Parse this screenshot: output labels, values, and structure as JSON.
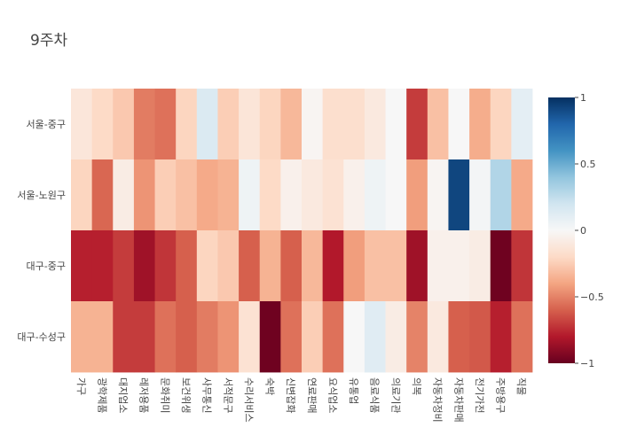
{
  "chart_data": {
    "type": "heatmap",
    "title": "9주차",
    "x": [
      "가구",
      "광학제품",
      "대지업소",
      "레저용품",
      "문화취미",
      "보건위생",
      "사무통신",
      "서적문구",
      "수리서비스",
      "숙박",
      "신변잡화",
      "연료판매",
      "요식업소",
      "유통업",
      "음료식품",
      "의료기관",
      "의복",
      "자동차정비",
      "자동차판매",
      "전기가전",
      "주방용구",
      "직물"
    ],
    "y": [
      "서울-중구",
      "서울-노원구",
      "대구-중구",
      "대구-수성구"
    ],
    "z": [
      [
        -0.12,
        -0.2,
        -0.27,
        -0.52,
        -0.55,
        -0.22,
        0.15,
        -0.25,
        -0.13,
        -0.22,
        -0.33,
        -0.02,
        -0.17,
        -0.17,
        -0.1,
        0.0,
        -0.7,
        -0.3,
        0.0,
        -0.37,
        -0.22,
        0.1
      ],
      [
        -0.22,
        -0.58,
        -0.08,
        -0.45,
        -0.25,
        -0.3,
        -0.38,
        -0.35,
        0.05,
        -0.2,
        -0.05,
        -0.1,
        -0.15,
        -0.05,
        0.05,
        0.0,
        -0.42,
        -0.02,
        0.92,
        0.02,
        0.3,
        -0.38
      ],
      [
        -0.78,
        -0.78,
        -0.7,
        -0.85,
        -0.72,
        -0.6,
        -0.22,
        -0.27,
        -0.6,
        -0.35,
        -0.6,
        -0.33,
        -0.8,
        -0.42,
        -0.3,
        -0.3,
        -0.85,
        -0.05,
        -0.05,
        -0.08,
        -0.98,
        -0.72
      ],
      [
        -0.35,
        -0.35,
        -0.7,
        -0.7,
        -0.55,
        -0.6,
        -0.52,
        -0.45,
        -0.15,
        -0.98,
        -0.55,
        -0.25,
        -0.55,
        0.0,
        0.12,
        -0.08,
        -0.5,
        -0.1,
        -0.6,
        -0.62,
        -0.78,
        -0.55
      ]
    ],
    "zlim": [
      -1,
      1
    ],
    "colorscale": "RdBu",
    "colorbar_ticks": [
      1,
      0.5,
      0,
      -0.5,
      -1
    ],
    "colorbar_tick_labels": [
      "1",
      "0.5",
      "0",
      "−0.5",
      "−1"
    ]
  }
}
